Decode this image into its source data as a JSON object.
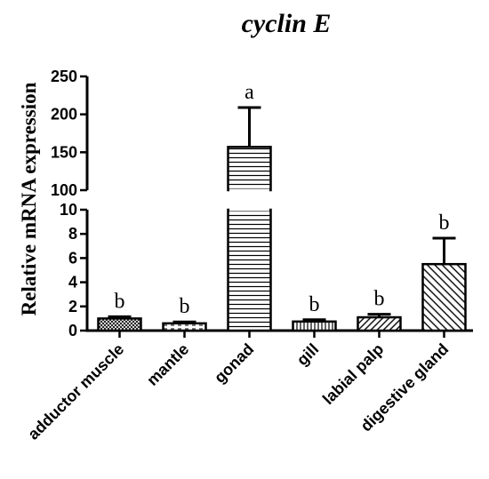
{
  "chart_data": {
    "type": "bar",
    "title": "cyclin E",
    "ylabel": "Relative mRNA expression",
    "xlabel": "",
    "categories": [
      "adductor muscle",
      "mantle",
      "gonad",
      "gill",
      "labial palp",
      "digestive gland"
    ],
    "values": [
      1.0,
      0.6,
      157,
      0.75,
      1.1,
      5.5
    ],
    "errors": [
      0.15,
      0.12,
      52,
      0.15,
      0.25,
      2.15
    ],
    "significance": [
      "b",
      "b",
      "a",
      "b",
      "b",
      "b"
    ],
    "patterns": [
      "crosshatch",
      "dashes",
      "horizontal",
      "vertical",
      "diagonal-left",
      "diagonal-right"
    ],
    "broken_axis": {
      "lower_segment": {
        "ylim": [
          0,
          10
        ],
        "ticks": [
          "0",
          "2",
          "4",
          "6",
          "8",
          "10"
        ]
      },
      "upper_segment": {
        "ylim": [
          100,
          250
        ],
        "ticks": [
          "100",
          "150",
          "200",
          "250"
        ]
      }
    },
    "grid": false
  }
}
